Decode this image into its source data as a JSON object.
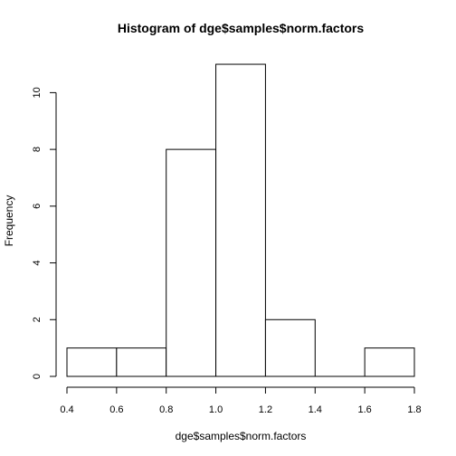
{
  "chart_data": {
    "type": "bar",
    "title": "Histogram of dge$samples$norm.factors",
    "xlabel": "dge$samples$norm.factors",
    "ylabel": "Frequency",
    "bins": [
      {
        "start": 0.4,
        "end": 0.6,
        "count": 1
      },
      {
        "start": 0.6,
        "end": 0.8,
        "count": 1
      },
      {
        "start": 0.8,
        "end": 1.0,
        "count": 8
      },
      {
        "start": 1.0,
        "end": 1.2,
        "count": 11
      },
      {
        "start": 1.2,
        "end": 1.4,
        "count": 2
      },
      {
        "start": 1.4,
        "end": 1.6,
        "count": 0
      },
      {
        "start": 1.6,
        "end": 1.8,
        "count": 1
      }
    ],
    "xlim": [
      0.4,
      1.8
    ],
    "ylim": [
      0,
      11
    ],
    "x_ticks": [
      "0.4",
      "0.6",
      "0.8",
      "1.0",
      "1.2",
      "1.4",
      "1.6",
      "1.8"
    ],
    "y_ticks": [
      "0",
      "2",
      "4",
      "6",
      "8",
      "10"
    ],
    "grid": false,
    "colors": {
      "bar_fill": "#ffffff",
      "bar_stroke": "#000000"
    }
  }
}
